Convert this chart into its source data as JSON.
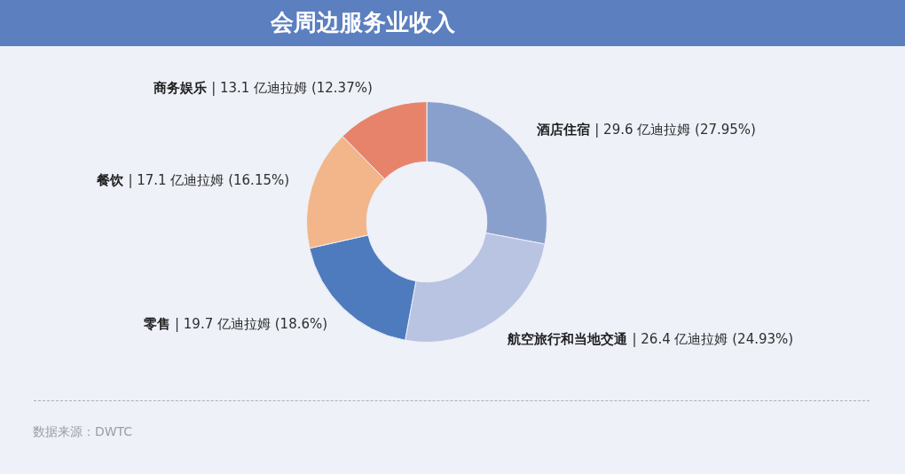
{
  "chart_data": {
    "type": "donut",
    "title": "会周边服务业收入",
    "categories": [
      "酒店住宿",
      "航空旅行和当地交通",
      "零售",
      "餐饮",
      "商务娱乐"
    ],
    "values": [
      29.6,
      26.4,
      19.7,
      17.1,
      13.1
    ],
    "colors": [
      "#8aa0cc",
      "#b9c3e2",
      "#4e7bbd",
      "#f2b68a",
      "#e8836b"
    ],
    "value_labels": [
      "| 29.6 亿迪拉姆 (27.95%)",
      "| 26.4 亿迪拉姆 (24.93%)",
      "| 19.7 亿迪拉姆 (18.6%)",
      "| 17.1 亿迪拉姆 (16.15%)",
      "| 13.1 亿迪拉姆 (12.37%)"
    ],
    "annotations": [
      "数据来源：DWTC"
    ]
  }
}
